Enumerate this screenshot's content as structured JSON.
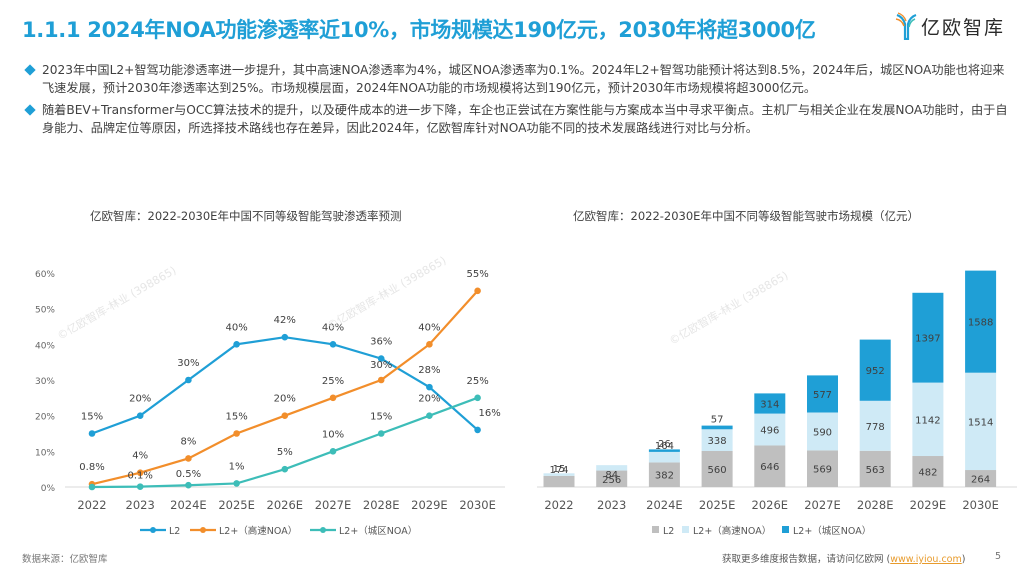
{
  "header": {
    "title": "1.1.1 2024年NOA功能渗透率近10%，市场规模达190亿元，2030年将超3000亿",
    "logo_text": "亿欧智库",
    "brand_color": "#1f9fd6"
  },
  "bullets": [
    "2023年中国L2+智驾功能渗透率进一步提升，其中高速NOA渗透率为4%，城区NOA渗透率为0.1%。2024年L2+智驾功能预计将达到8.5%，2024年后，城区NOA功能也将迎来飞速发展，预计2030年渗透率达到25%。市场规模层面，2024年NOA功能的市场规模将达到190亿元，预计2030年市场规模将超3000亿元。",
    "随着BEV+Transformer与OCC算法技术的提升，以及硬件成本的进一步下降，车企也正尝试在方案性能与方案成本当中寻求平衡点。主机厂与相关企业在发展NOA功能时，由于自身能力、品牌定位等原因，所选择技术路线也存在差异，因此2024年，亿欧智库针对NOA功能不同的技术发展路线进行对比与分析。"
  ],
  "chart_data": [
    {
      "type": "line",
      "title": "亿欧智库：2022-2030E年中国不同等级智能驾驶渗透率预测",
      "categories": [
        "2022",
        "2023",
        "2024E",
        "2025E",
        "2026E",
        "2027E",
        "2028E",
        "2029E",
        "2030E"
      ],
      "series": [
        {
          "name": "L2",
          "color": "#1f9fd6",
          "values": [
            15,
            20,
            30,
            40,
            42,
            40,
            36,
            28,
            16
          ],
          "labels": [
            "15%",
            "20%",
            "30%",
            "40%",
            "42%",
            "40%",
            "36%",
            "28%",
            "16%"
          ]
        },
        {
          "name": "L2+（高速NOA）",
          "color": "#f28e2b",
          "values": [
            0.8,
            4,
            8,
            15,
            20,
            25,
            30,
            40,
            55
          ],
          "labels": [
            "0.8%",
            "4%",
            "8%",
            "15%",
            "20%",
            "25%",
            "30%",
            "40%",
            "55%"
          ]
        },
        {
          "name": "L2+（城区NOA）",
          "color": "#3dbdb8",
          "values": [
            0,
            0.1,
            0.5,
            1,
            5,
            10,
            15,
            20,
            25
          ],
          "labels": [
            "",
            "0.1%",
            "0.5%",
            "1%",
            "5%",
            "10%",
            "15%",
            "20%",
            "25%"
          ]
        }
      ],
      "ylim": [
        0,
        60
      ],
      "yticks": [
        "0%",
        "10%",
        "20%",
        "30%",
        "40%",
        "50%",
        "60%"
      ],
      "ytick_values": [
        0,
        10,
        20,
        30,
        40,
        50,
        60
      ],
      "xlabel": "",
      "ylabel": "",
      "grid": false,
      "legend": "bottom"
    },
    {
      "type": "bar",
      "stacked": true,
      "title": "亿欧智库：2022-2030E年中国不同等级智能驾驶市场规模（亿元）",
      "categories": [
        "2022",
        "2023",
        "2024E",
        "2025E",
        "2026E",
        "2027E",
        "2028E",
        "2029E",
        "2030E"
      ],
      "series": [
        {
          "name": "L2",
          "color": "#bfbfbf",
          "values": [
            174,
            256,
            382,
            560,
            646,
            569,
            563,
            482,
            264
          ]
        },
        {
          "name": "L2+（高速NOA）",
          "color": "#cfeaf6",
          "values": [
            15,
            84,
            164,
            338,
            496,
            590,
            778,
            1142,
            1514
          ]
        },
        {
          "name": "L2+（城区NOA）",
          "color": "#1f9fd6",
          "values": [
            0,
            0,
            26,
            57,
            314,
            577,
            952,
            1397,
            1588
          ]
        }
      ],
      "xlabel": "",
      "ylabel": "",
      "grid": false,
      "legend": "bottom"
    }
  ],
  "source": "数据来源：亿欧智库",
  "footer": {
    "text": "获取更多维度报告数据，请访问亿欧网 (",
    "link": "www.iyiou.com",
    "close": ")",
    "page": "5"
  },
  "watermark": "©亿欧智库-林业 (398865)"
}
